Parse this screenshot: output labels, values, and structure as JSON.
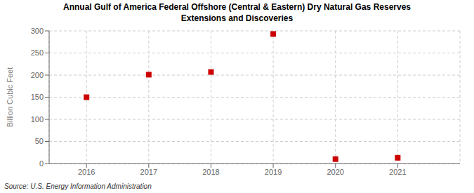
{
  "chart_data": {
    "type": "scatter",
    "title": "Annual Gulf of America Federal Offshore (Central & Eastern) Dry Natural Gas Reserves\nExtensions and Discoveries",
    "y_label": "Billion Cubic Feet",
    "annotation": "Source: U.S. Energy Information Administration",
    "x": [
      2016,
      2017,
      2018,
      2019,
      2020,
      2021
    ],
    "values": [
      150,
      201,
      207,
      293,
      10,
      13
    ],
    "color": "#cc0000",
    "marker": "square",
    "xlim": [
      2015.4,
      2022.0
    ],
    "xticks": [
      2016,
      2017,
      2018,
      2019,
      2020,
      2021
    ],
    "ylim": [
      0,
      300
    ],
    "yticks": [
      0,
      50,
      100,
      150,
      200,
      250,
      300
    ],
    "grid": true
  }
}
